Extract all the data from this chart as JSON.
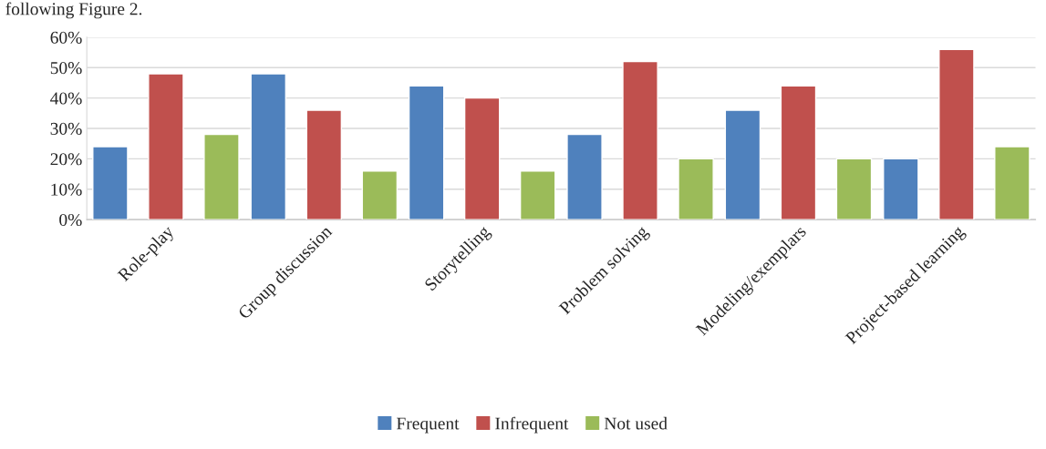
{
  "chart_data": {
    "type": "bar",
    "categories": [
      "Role-play",
      "Group discussion",
      "Storytelling",
      "Problem solving",
      "Modeling/exemplars",
      "Project-based learning"
    ],
    "series": [
      {
        "name": "Frequent",
        "color": "#4f81bd",
        "values": [
          24,
          48,
          44,
          28,
          36,
          20
        ]
      },
      {
        "name": "Infrequent",
        "color": "#c0504d",
        "values": [
          48,
          36,
          40,
          52,
          44,
          56
        ]
      },
      {
        "name": "Not used",
        "color": "#9bbb59",
        "values": [
          28,
          16,
          16,
          20,
          20,
          24
        ]
      }
    ],
    "ylim": [
      0,
      60
    ],
    "yticks": [
      {
        "value": 0,
        "label": "0%"
      },
      {
        "value": 10,
        "label": "10%"
      },
      {
        "value": 20,
        "label": "20%"
      },
      {
        "value": 30,
        "label": "30%"
      },
      {
        "value": 40,
        "label": "40%"
      },
      {
        "value": 50,
        "label": "50%"
      },
      {
        "value": 60,
        "label": "60%"
      }
    ],
    "grid": "y",
    "legend": "bottom",
    "annotations": [
      "following Figure 2."
    ]
  }
}
